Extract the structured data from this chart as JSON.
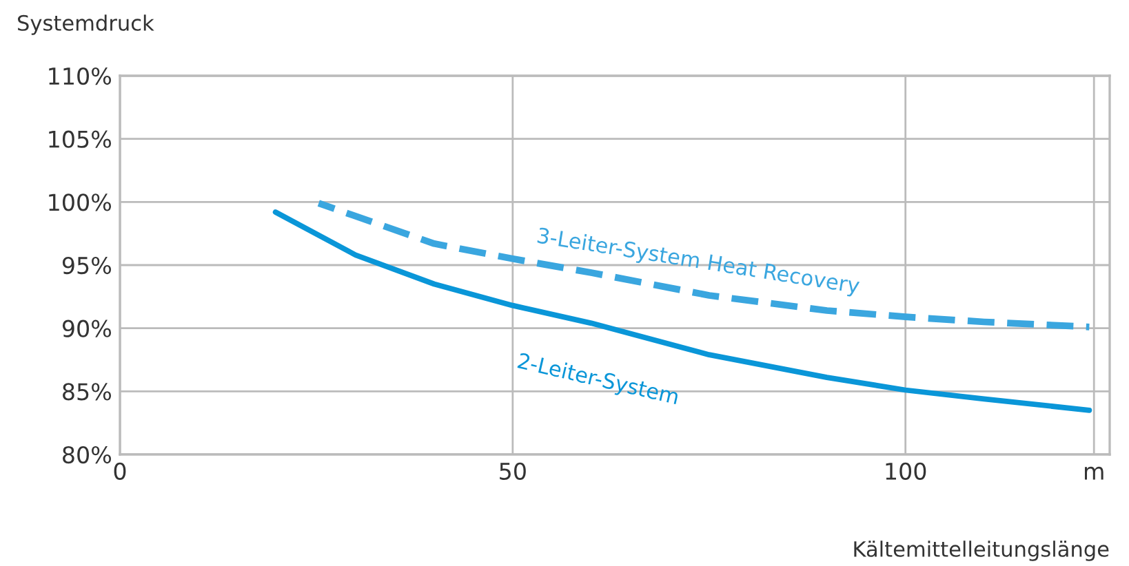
{
  "chart_data": {
    "type": "line",
    "ylabel": "Systemdruck",
    "xlabel": "Kältemittelleitungslänge",
    "xlim": [
      0,
      126
    ],
    "xticks": [
      0,
      50,
      100,
      {
        "value": 124,
        "label": "m"
      }
    ],
    "ylim": [
      80,
      110
    ],
    "yticks": [
      {
        "value": 80,
        "label": "80%"
      },
      {
        "value": 85,
        "label": "85%"
      },
      {
        "value": 90,
        "label": "90%"
      },
      {
        "value": 95,
        "label": "95%"
      },
      {
        "value": 100,
        "label": "100%"
      },
      {
        "value": 105,
        "label": "105%"
      },
      {
        "value": 110,
        "label": "110%"
      }
    ],
    "grid": true,
    "legend": false,
    "series": [
      {
        "name": "2-Leiter-System",
        "color": "#0a96d8",
        "line_style": "solid",
        "x": [
          19.8,
          30,
          40,
          50,
          60,
          75,
          90,
          100,
          110,
          123.4
        ],
        "values": [
          99.2,
          95.8,
          93.5,
          91.8,
          90.4,
          87.9,
          86.1,
          85.1,
          84.4,
          83.5
        ]
      },
      {
        "name": "3-Leiter-System Heat Recovery",
        "color": "#3aa6df",
        "line_style": "dashed",
        "x": [
          25.3,
          40,
          50,
          60,
          75,
          90,
          100,
          110,
          123.4
        ],
        "values": [
          99.9,
          96.7,
          95.5,
          94.4,
          92.6,
          91.4,
          90.9,
          90.5,
          90.1
        ]
      }
    ]
  }
}
